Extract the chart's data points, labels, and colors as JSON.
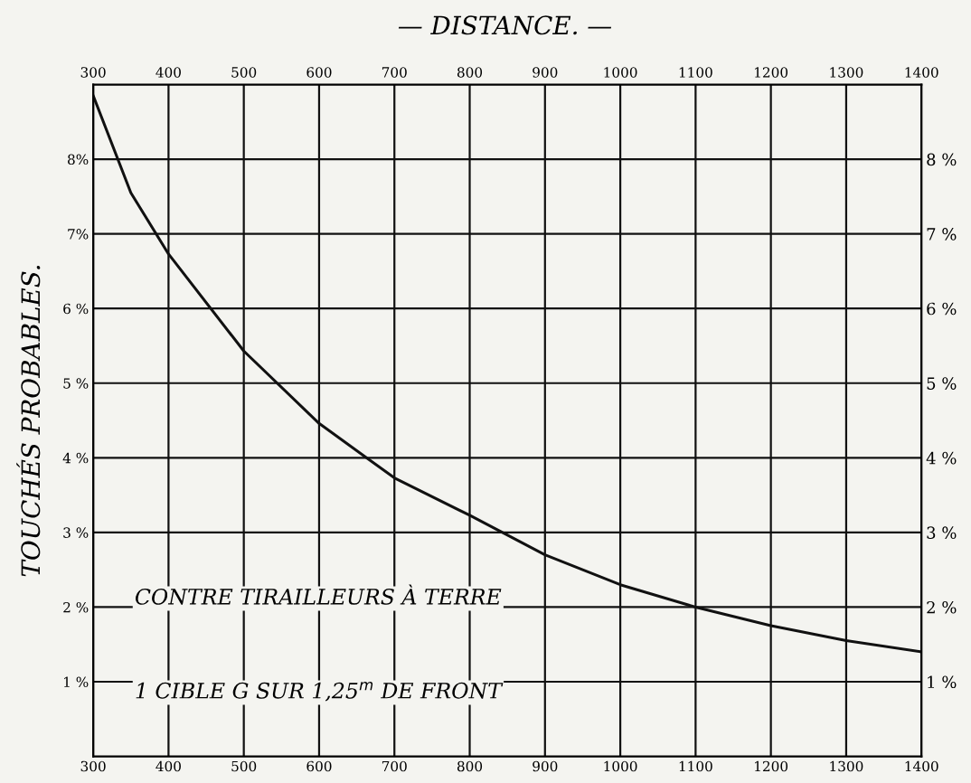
{
  "chart_data": {
    "type": "line",
    "title": "— DISTANCE. —",
    "ylabel": "TOUCHÉS PROBABLES.",
    "x": [
      300,
      350,
      400,
      500,
      600,
      700,
      800,
      900,
      1000,
      1100,
      1200,
      1300,
      1400
    ],
    "series": [
      {
        "color": "#111111",
        "values": [
          8.85,
          7.55,
          6.73,
          5.43,
          4.46,
          3.73,
          3.23,
          2.7,
          2.3,
          2.0,
          1.75,
          1.55,
          1.4
        ]
      }
    ],
    "xlim": [
      300,
      1400
    ],
    "xticks": [
      300,
      400,
      500,
      600,
      700,
      800,
      900,
      1000,
      1100,
      1200,
      1300,
      1400
    ],
    "x2lim": [
      300,
      1400
    ],
    "x2ticks": [
      300,
      400,
      500,
      600,
      700,
      800,
      900,
      1000,
      1100,
      1200,
      1300,
      1400
    ],
    "ylim": [
      0,
      9
    ],
    "yticks": [
      {
        "value": 1,
        "label": "1 %"
      },
      {
        "value": 2,
        "label": "2 %"
      },
      {
        "value": 3,
        "label": "3 %"
      },
      {
        "value": 4,
        "label": "4 %"
      },
      {
        "value": 5,
        "label": "5 %"
      },
      {
        "value": 6,
        "label": "6 %"
      },
      {
        "value": 7,
        "label": "7%"
      },
      {
        "value": 8,
        "label": "8%"
      }
    ],
    "y2lim": [
      0,
      9
    ],
    "y2ticks": [
      {
        "value": 1,
        "label": "1 %"
      },
      {
        "value": 2,
        "label": "2 %"
      },
      {
        "value": 3,
        "label": "3 %"
      },
      {
        "value": 4,
        "label": "4 %"
      },
      {
        "value": 5,
        "label": "5 %"
      },
      {
        "value": 6,
        "label": "6 %"
      },
      {
        "value": 7,
        "label": "7 %"
      },
      {
        "value": 8,
        "label": "8 %"
      }
    ],
    "grid": true,
    "marker": "none",
    "line_style": "solid",
    "annotations": [
      "CONTRE TIRAILLEURS À TERRE",
      "1 CIBLE G SUR 1,25$^{m}$ DE FRONT"
    ]
  }
}
